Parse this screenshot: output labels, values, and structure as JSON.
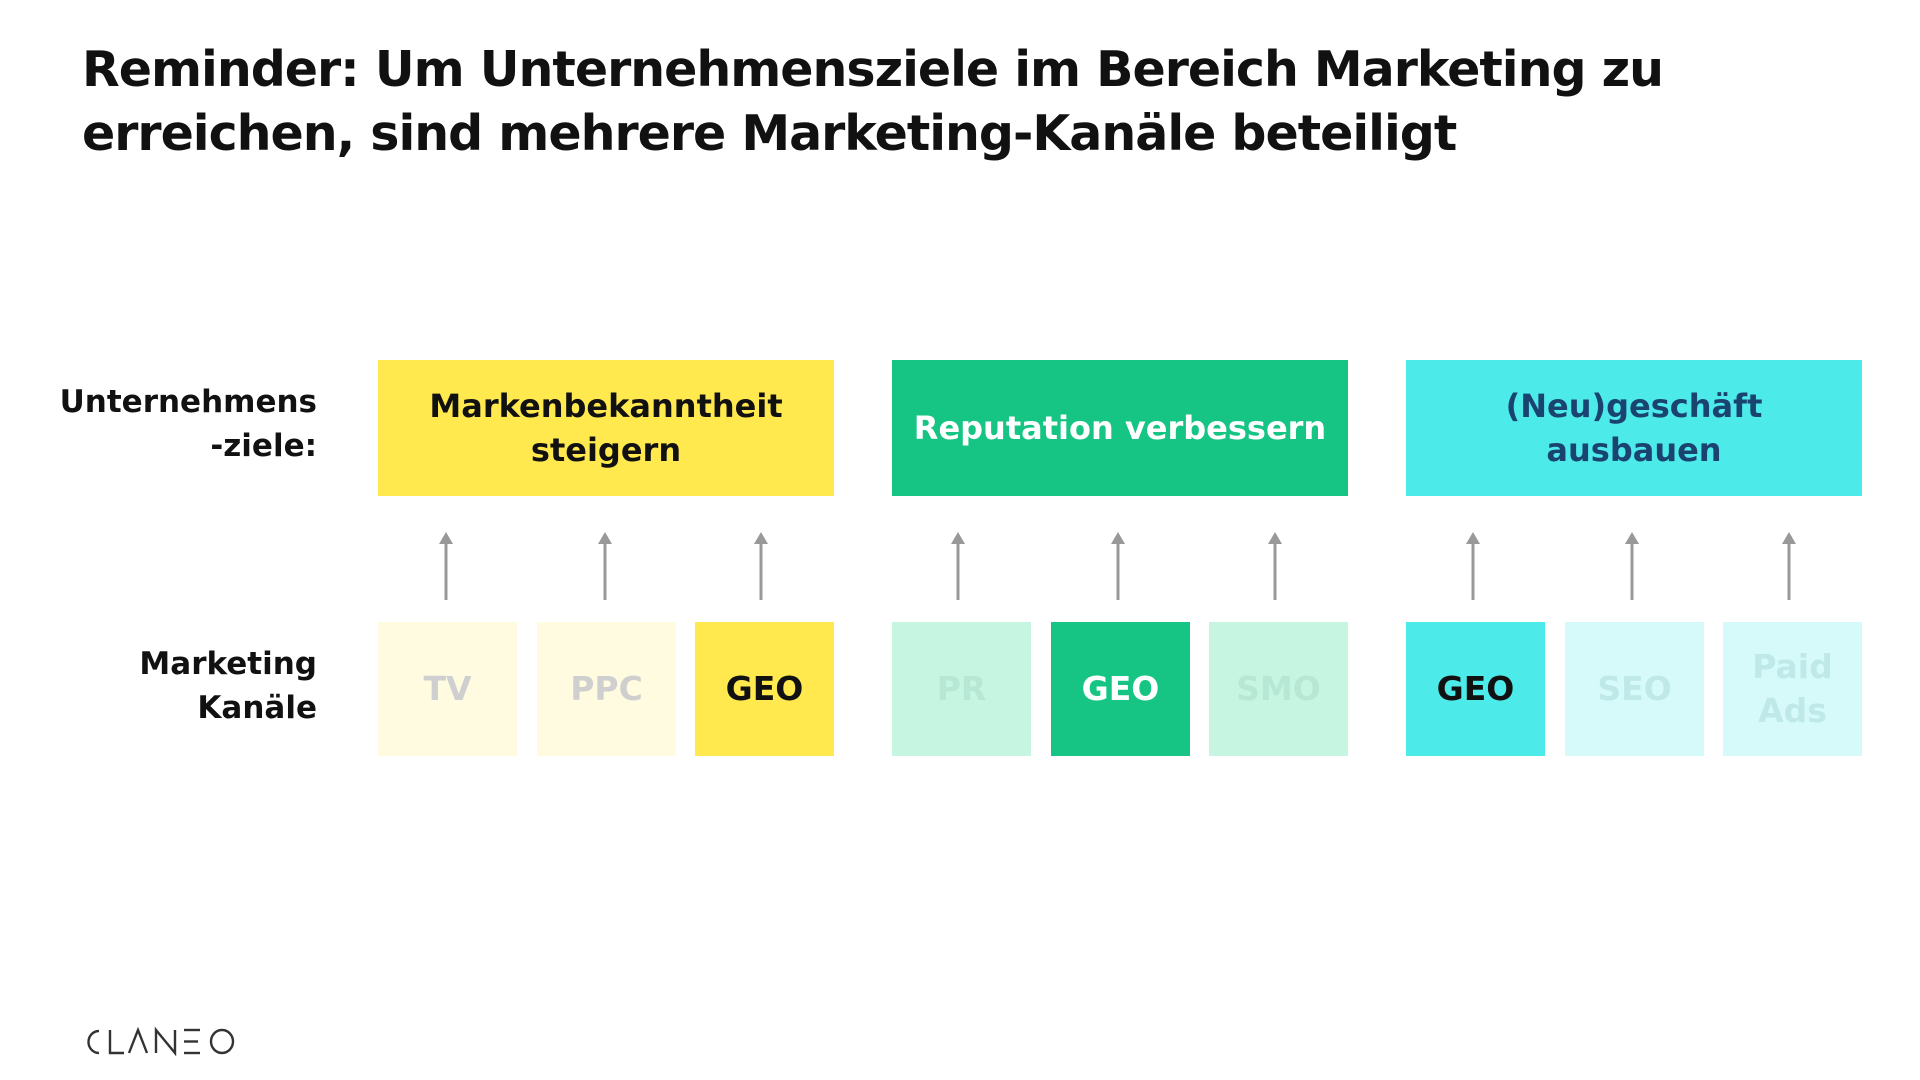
{
  "title": {
    "line1": "Reminder: Um Unternehmensziele im Bereich Marketing zu",
    "line2": "erreichen, sind mehrere Marketing-Kanäle beteiligt"
  },
  "row_labels": {
    "goals": [
      "Unternehmens",
      "-ziele:"
    ],
    "channels": [
      "Marketing",
      "Kanäle"
    ]
  },
  "goals": [
    {
      "lines": [
        "Markenbekanntheit",
        "steigern"
      ],
      "bg": "#FFE94F",
      "color": "#111111"
    },
    {
      "lines": [
        "Reputation verbessern"
      ],
      "bg": "#16C584",
      "color": "#FFFFFF"
    },
    {
      "lines": [
        "(Neu)geschäft",
        "ausbauen"
      ],
      "bg": "#4DEAEA",
      "color": "#1A4370"
    }
  ],
  "channels": [
    {
      "lines": [
        "TV"
      ],
      "bg": "#FFFBE0",
      "color": "#CFCFCF"
    },
    {
      "lines": [
        "PPC"
      ],
      "bg": "#FFFBE0",
      "color": "#CFCFCF"
    },
    {
      "lines": [
        "GEO"
      ],
      "bg": "#FFE94F",
      "color": "#111111"
    },
    {
      "lines": [
        "PR"
      ],
      "bg": "#C6F6E2",
      "color": "#B7E8D5"
    },
    {
      "lines": [
        "GEO"
      ],
      "bg": "#16C584",
      "color": "#FFFFFF"
    },
    {
      "lines": [
        "SMO"
      ],
      "bg": "#C6F6E2",
      "color": "#B7E8D5"
    },
    {
      "lines": [
        "GEO"
      ],
      "bg": "#4DEAEA",
      "color": "#111111"
    },
    {
      "lines": [
        "SEO"
      ],
      "bg": "#D6FAFA",
      "color": "#BFE8E8"
    },
    {
      "lines": [
        "Paid",
        "Ads"
      ],
      "bg": "#D6FAFA",
      "color": "#BFE8E8"
    }
  ],
  "arrow_color": "#999999",
  "logo": {
    "text": "CLANEO",
    "color": "#333333"
  }
}
